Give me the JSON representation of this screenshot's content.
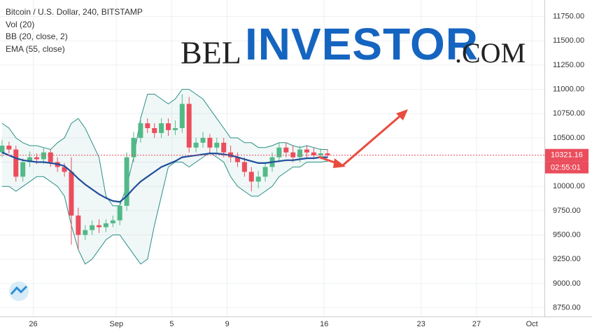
{
  "chart_data": {
    "type": "candlestick",
    "title": "Bitcoin / U.S. Dollar, 240, BITSTAMP",
    "indicators": [
      "Vol (20)",
      "BB (20, close, 2)",
      "EMA (55, close)"
    ],
    "watermark": {
      "prefix": "BEL",
      "main": "INVESTOR",
      "suffix": ".COM"
    },
    "price_label": "10321.16",
    "countdown_label": "02:55:01",
    "last_price": 10321.16,
    "xlim": [
      23.6,
      62.9
    ],
    "xticks": [
      26,
      {
        "value": 32,
        "label": "Sep"
      },
      {
        "value": 36,
        "label": "5"
      },
      {
        "value": 40,
        "label": "9"
      },
      {
        "value": 47,
        "label": "16"
      },
      {
        "value": 54,
        "label": "23"
      },
      {
        "value": 58,
        "label": "27"
      },
      {
        "value": 62,
        "label": "Oct"
      }
    ],
    "ylim": [
      8660,
      11920
    ],
    "yticks": [
      {
        "value": 8750,
        "label": "8750.00"
      },
      {
        "value": 9000,
        "label": "9000.00"
      },
      {
        "value": 9250,
        "label": "9250.00"
      },
      {
        "value": 9500,
        "label": "9500.00"
      },
      {
        "value": 9750,
        "label": "9750.00"
      },
      {
        "value": 10000,
        "label": "10000.00"
      },
      {
        "value": 10250,
        "label": "10250.00"
      },
      {
        "value": 10500,
        "label": "10500.00"
      },
      {
        "value": 10750,
        "label": "10750.00"
      },
      {
        "value": 11000,
        "label": "11000.00"
      },
      {
        "value": 11250,
        "label": "11250.00"
      },
      {
        "value": 11500,
        "label": "11500.00"
      },
      {
        "value": 11750,
        "label": "11750.00"
      }
    ],
    "up_color": "#53b987",
    "down_color": "#eb4d5c",
    "x": [
      23.75,
      24.25,
      24.75,
      25.25,
      25.75,
      26.25,
      26.75,
      27.25,
      27.75,
      28.25,
      28.75,
      29.25,
      29.75,
      30.25,
      30.75,
      31.25,
      31.75,
      32.25,
      32.75,
      33.25,
      33.75,
      34.25,
      34.75,
      35.25,
      35.75,
      36.25,
      36.75,
      37.25,
      37.75,
      38.25,
      38.75,
      39.25,
      39.75,
      40.25,
      40.75,
      41.25,
      41.75,
      42.25,
      42.75,
      43.25,
      43.75,
      44.25,
      44.75,
      45.25,
      45.75,
      46.25,
      46.75,
      47.25
    ],
    "open": [
      10350,
      10420,
      10380,
      10100,
      10250,
      10300,
      10280,
      10350,
      10250,
      10200,
      10150,
      9700,
      9500,
      9550,
      9600,
      9580,
      9620,
      9650,
      9800,
      10300,
      10500,
      10650,
      10600,
      10550,
      10650,
      10580,
      10600,
      10850,
      10400,
      10450,
      10500,
      10400,
      10450,
      10350,
      10300,
      10250,
      10150,
      10050,
      10100,
      10200,
      10300,
      10400,
      10350,
      10300,
      10380,
      10350,
      10320,
      10340
    ],
    "high": [
      10480,
      10460,
      10420,
      10290,
      10360,
      10340,
      10400,
      10380,
      10300,
      10240,
      10300,
      9780,
      9600,
      9650,
      9660,
      9660,
      9700,
      9850,
      10350,
      10560,
      10720,
      10700,
      10650,
      10700,
      10700,
      10680,
      10950,
      10920,
      10500,
      10560,
      10540,
      10500,
      10500,
      10420,
      10350,
      10300,
      10200,
      10160,
      10250,
      10350,
      10450,
      10450,
      10420,
      10420,
      10420,
      10400,
      10390,
      10380
    ],
    "low": [
      10300,
      10340,
      10050,
      10050,
      10200,
      10230,
      10230,
      10200,
      10150,
      10100,
      9400,
      9350,
      9450,
      9500,
      9520,
      9530,
      9580,
      9600,
      9750,
      10250,
      10450,
      10550,
      10500,
      10500,
      10520,
      10530,
      10550,
      10350,
      10350,
      10400,
      10350,
      10350,
      10300,
      10250,
      10200,
      10100,
      9950,
      9980,
      10050,
      10150,
      10250,
      10300,
      10250,
      10250,
      10300,
      10280,
      10280,
      10300
    ],
    "close": [
      10420,
      10380,
      10100,
      10250,
      10300,
      10280,
      10350,
      10250,
      10200,
      10150,
      9700,
      9500,
      9550,
      9600,
      9580,
      9620,
      9650,
      9800,
      10300,
      10500,
      10650,
      10600,
      10550,
      10650,
      10580,
      10600,
      10850,
      10400,
      10450,
      10500,
      10400,
      10450,
      10350,
      10300,
      10250,
      10150,
      10050,
      10100,
      10200,
      10300,
      10400,
      10350,
      10300,
      10380,
      10350,
      10320,
      10340,
      10321.16
    ],
    "lines": [
      {
        "color": "#1f4e9c",
        "width": 2.2,
        "values": [
          10350,
          10320,
          10290,
          10270,
          10260,
          10250,
          10250,
          10240,
          10230,
          10210,
          10150,
          10080,
          10020,
          9970,
          9920,
          9880,
          9850,
          9840,
          9900,
          9980,
          10050,
          10100,
          10150,
          10200,
          10230,
          10260,
          10300,
          10310,
          10320,
          10330,
          10340,
          10340,
          10330,
          10320,
          10300,
          10280,
          10260,
          10240,
          10240,
          10250,
          10260,
          10270,
          10270,
          10280,
          10290,
          10290,
          10300,
          10300
        ]
      },
      {
        "color": "#2a8f87",
        "width": 1,
        "values": [
          10650,
          10600,
          10500,
          10450,
          10420,
          10420,
          10400,
          10380,
          10450,
          10500,
          10650,
          10700,
          10600,
          10450,
          10300,
          9900,
          9800,
          9800,
          10000,
          10300,
          10700,
          10950,
          10950,
          10900,
          10850,
          10900,
          11000,
          11000,
          10950,
          10900,
          10800,
          10700,
          10600,
          10500,
          10500,
          10450,
          10450,
          10400,
          10400,
          10420,
          10450,
          10450,
          10420,
          10400,
          10420,
          10400,
          10380,
          10380
        ]
      },
      {
        "color": "#2a8f87",
        "width": 1,
        "values": [
          10000,
          10000,
          9950,
          10000,
          10050,
          10100,
          10100,
          10050,
          10000,
          9900,
          9600,
          9350,
          9200,
          9250,
          9350,
          9450,
          9500,
          9500,
          9400,
          9300,
          9200,
          9250,
          9600,
          9900,
          10200,
          10250,
          10250,
          10200,
          10250,
          10300,
          10350,
          10300,
          10250,
          10100,
          10000,
          9950,
          9900,
          9900,
          9950,
          10000,
          10100,
          10150,
          10200,
          10200,
          10250,
          10250,
          10250,
          10260
        ]
      }
    ]
  }
}
